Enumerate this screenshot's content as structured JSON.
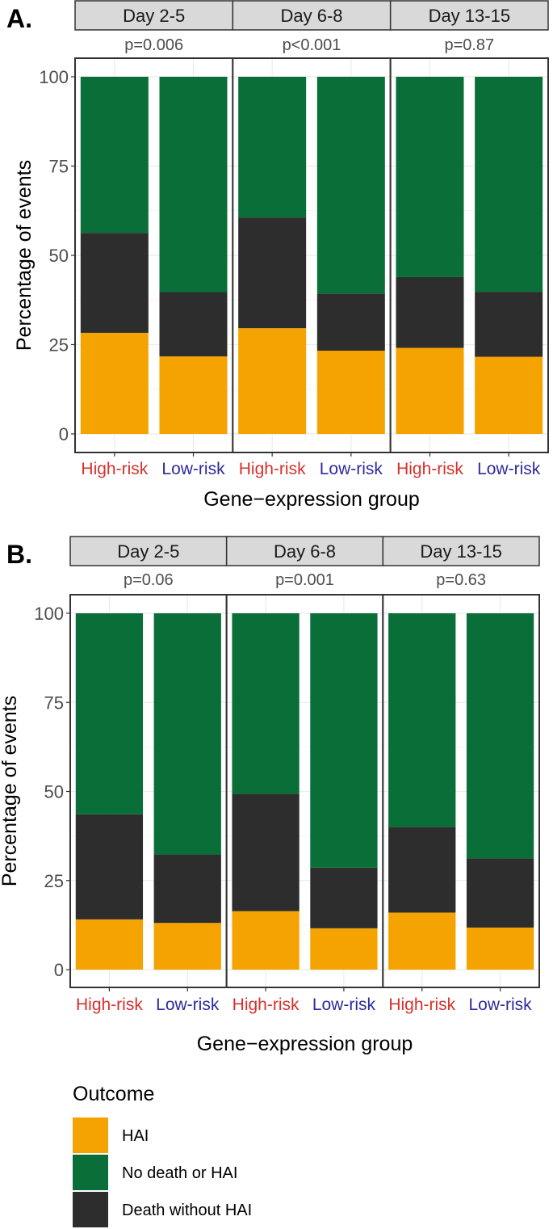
{
  "chart_data": [
    {
      "type": "bar",
      "stacked": true,
      "panel_label": "A.",
      "facets": [
        {
          "label": "Day 2-5",
          "p_value": "p=0.006"
        },
        {
          "label": "Day 6-8",
          "p_value": "p<0.001"
        },
        {
          "label": "Day 13-15",
          "p_value": "p=0.87"
        }
      ],
      "categories": [
        "High-risk",
        "Low-risk"
      ],
      "category_colors": [
        "#d6312b",
        "#2d2a9e"
      ],
      "series": [
        {
          "name": "HAI",
          "values": [
            [
              28.3,
              21.7
            ],
            [
              29.6,
              23.3
            ],
            [
              24.1,
              21.6
            ]
          ]
        },
        {
          "name": "Death without HAI",
          "values": [
            [
              28.0,
              18.0
            ],
            [
              31.0,
              16.0
            ],
            [
              19.8,
              18.2
            ]
          ]
        },
        {
          "name": "No death or HAI",
          "values": [
            [
              43.7,
              60.3
            ],
            [
              39.4,
              60.7
            ],
            [
              56.1,
              60.2
            ]
          ]
        }
      ],
      "xlabel": "Gene−expression group",
      "ylabel": "Percentage of events",
      "ylim": [
        0,
        100
      ],
      "yticks": [
        0,
        25,
        50,
        75,
        100
      ]
    },
    {
      "type": "bar",
      "stacked": true,
      "panel_label": "B.",
      "facets": [
        {
          "label": "Day 2-5",
          "p_value": "p=0.06"
        },
        {
          "label": "Day 6-8",
          "p_value": "p=0.001"
        },
        {
          "label": "Day 13-15",
          "p_value": "p=0.63"
        }
      ],
      "categories": [
        "High-risk",
        "Low-risk"
      ],
      "category_colors": [
        "#d6312b",
        "#2d2a9e"
      ],
      "series": [
        {
          "name": "HAI",
          "values": [
            [
              14.1,
              13.1
            ],
            [
              16.4,
              11.6
            ],
            [
              16.0,
              11.8
            ]
          ]
        },
        {
          "name": "Death without HAI",
          "values": [
            [
              29.5,
              19.2
            ],
            [
              32.9,
              17.0
            ],
            [
              24.0,
              19.4
            ]
          ]
        },
        {
          "name": "No death or HAI",
          "values": [
            [
              56.4,
              67.7
            ],
            [
              50.7,
              71.4
            ],
            [
              60.0,
              68.8
            ]
          ]
        }
      ],
      "xlabel": "Gene−expression group",
      "ylabel": "Percentage of events",
      "ylim": [
        0,
        100
      ],
      "yticks": [
        0,
        25,
        50,
        75,
        100
      ]
    }
  ],
  "legend": {
    "title": "Outcome",
    "items": [
      {
        "label": "HAI",
        "color": "#f5a300"
      },
      {
        "label": "No death or HAI",
        "color": "#0a6e38"
      },
      {
        "label": "Death without HAI",
        "color": "#2d2d2d"
      }
    ]
  },
  "colors": {
    "HAI": "#f5a300",
    "Death without HAI": "#2d2d2d",
    "No death or HAI": "#0a6e38",
    "strip_fill": "#d9d9d9",
    "grid": "#ebebeb"
  }
}
